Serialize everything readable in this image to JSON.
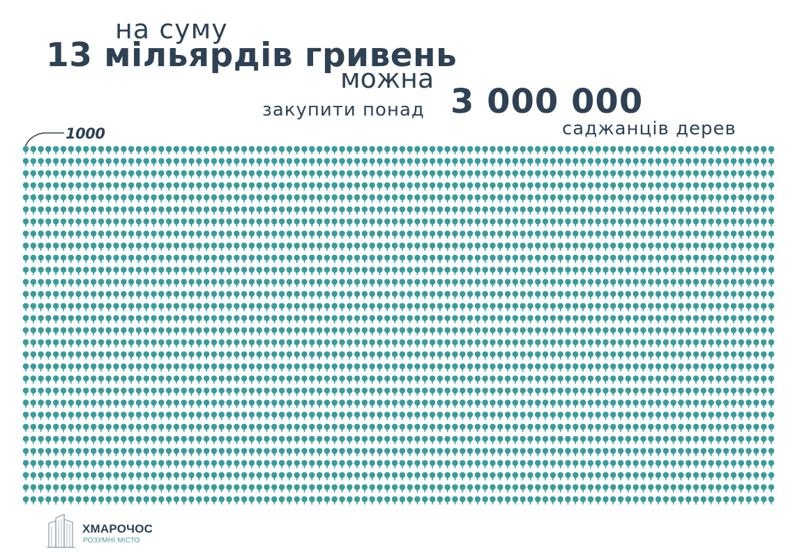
{
  "headline": {
    "line1": "на суму",
    "line2": "13 мільярдів гривень",
    "line3": "можна",
    "line4": "закупити понад",
    "big_number": "3 000 000",
    "line5": "саджанців дерев"
  },
  "chart_data": {
    "type": "pictogram",
    "unit_label": "1000",
    "units_per_icon": 1000,
    "icon": "tree-icon",
    "total_value": 3000000,
    "rows": 30,
    "columns": 100,
    "icon_color": "#3a9c9c"
  },
  "brand": {
    "name": "ХМАРОЧОС",
    "tagline": "РОЗУМНІ МІСТО",
    "logo_icon": "skyscraper-icon"
  },
  "colors": {
    "text": "#2f4154",
    "accent": "#3a9c9c",
    "background": "#ffffff"
  }
}
